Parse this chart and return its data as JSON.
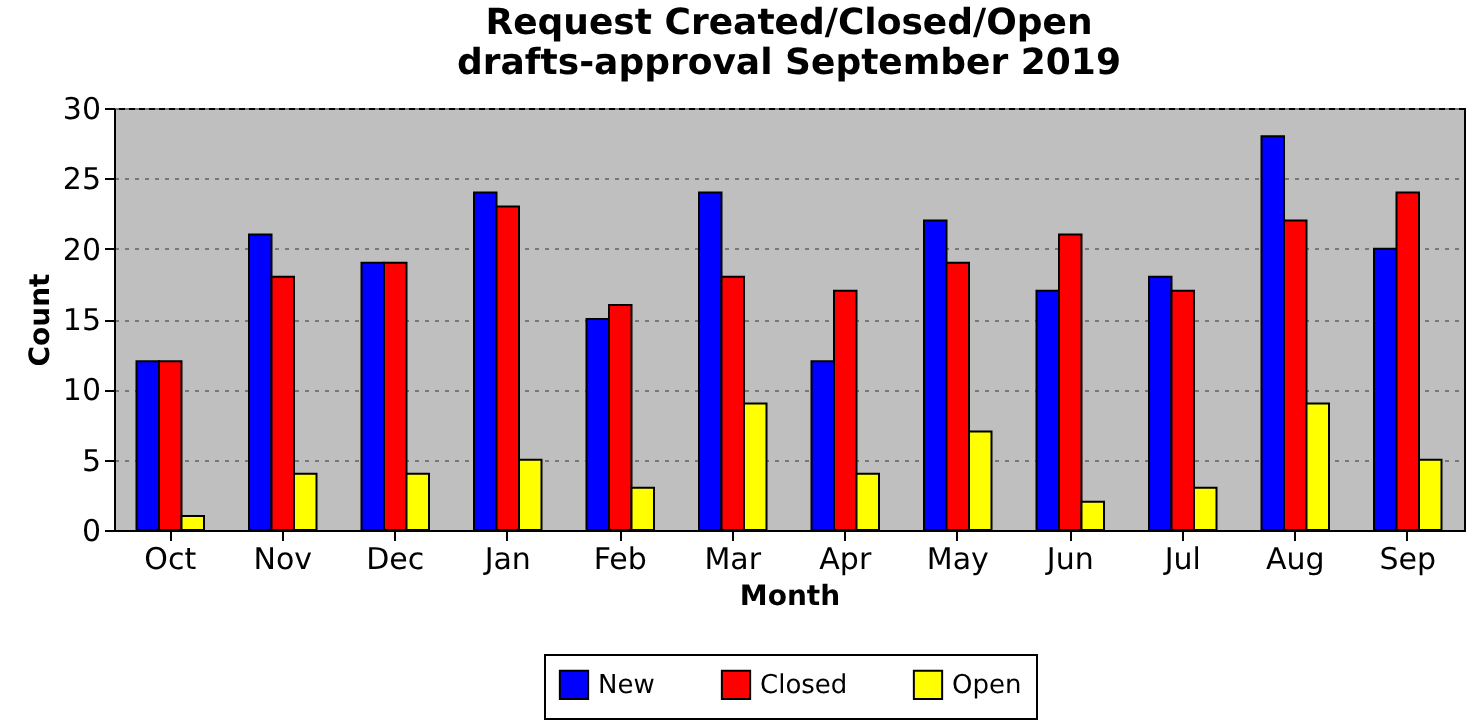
{
  "chart_data": {
    "type": "bar",
    "title": "Request Created/Closed/Open",
    "subtitle": "drafts-approval September 2019",
    "xlabel": "Month",
    "ylabel": "Count",
    "categories": [
      "Oct",
      "Nov",
      "Dec",
      "Jan",
      "Feb",
      "Mar",
      "Apr",
      "May",
      "Jun",
      "Jul",
      "Aug",
      "Sep"
    ],
    "series": [
      {
        "name": "New",
        "color": "#0000ff",
        "values": [
          12,
          21,
          19,
          24,
          15,
          24,
          12,
          22,
          17,
          18,
          28,
          20
        ]
      },
      {
        "name": "Closed",
        "color": "#ff0000",
        "values": [
          12,
          18,
          19,
          23,
          16,
          18,
          17,
          19,
          21,
          17,
          22,
          24
        ]
      },
      {
        "name": "Open",
        "color": "#ffff00",
        "values": [
          1,
          4,
          4,
          5,
          3,
          9,
          4,
          7,
          2,
          3,
          9,
          5
        ]
      }
    ],
    "ylim": [
      0,
      30
    ],
    "yticks": [
      0,
      5,
      10,
      15,
      20,
      25,
      30
    ],
    "grid": "y",
    "legend": "bottom"
  }
}
